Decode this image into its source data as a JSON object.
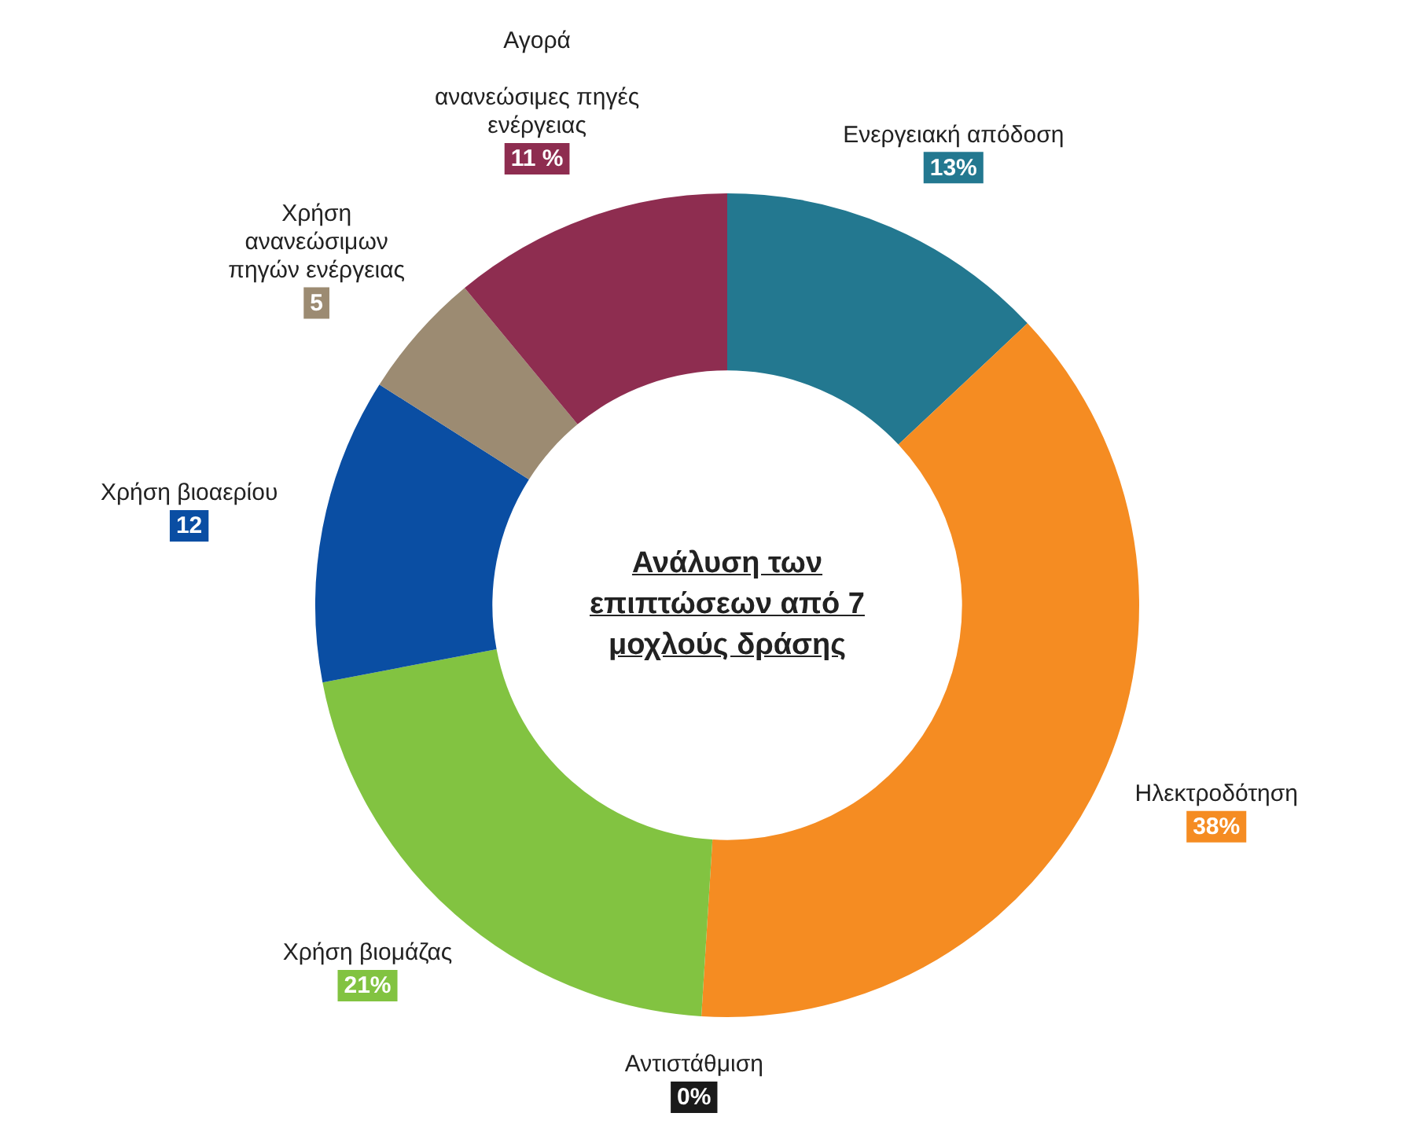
{
  "chart_data": {
    "type": "donut",
    "title": "Ανάλυση των επιπτώσεων από 7 μοχλούς δράσης",
    "categories": [
      "Ενεργειακή απόδοση",
      "Ηλεκτροδότηση",
      "Αντιστάθμιση",
      "Χρήση βιομάζας",
      "Χρήση βιοαερίου",
      "Χρήση\nανανεώσιμων\nπηγών ενέργειας",
      "Αγορά\n\nανανεώσιμες πηγές\nενέργειας"
    ],
    "values": [
      13,
      38,
      0,
      21,
      12,
      5,
      11
    ],
    "value_labels": [
      "13%",
      "38%",
      "0%",
      "21%",
      "12",
      "5",
      "11 %"
    ],
    "colors": [
      "#237890",
      "#f58c22",
      "#1a1a1a",
      "#82c341",
      "#0a4ea3",
      "#9c8b72",
      "#8e2d50"
    ]
  }
}
